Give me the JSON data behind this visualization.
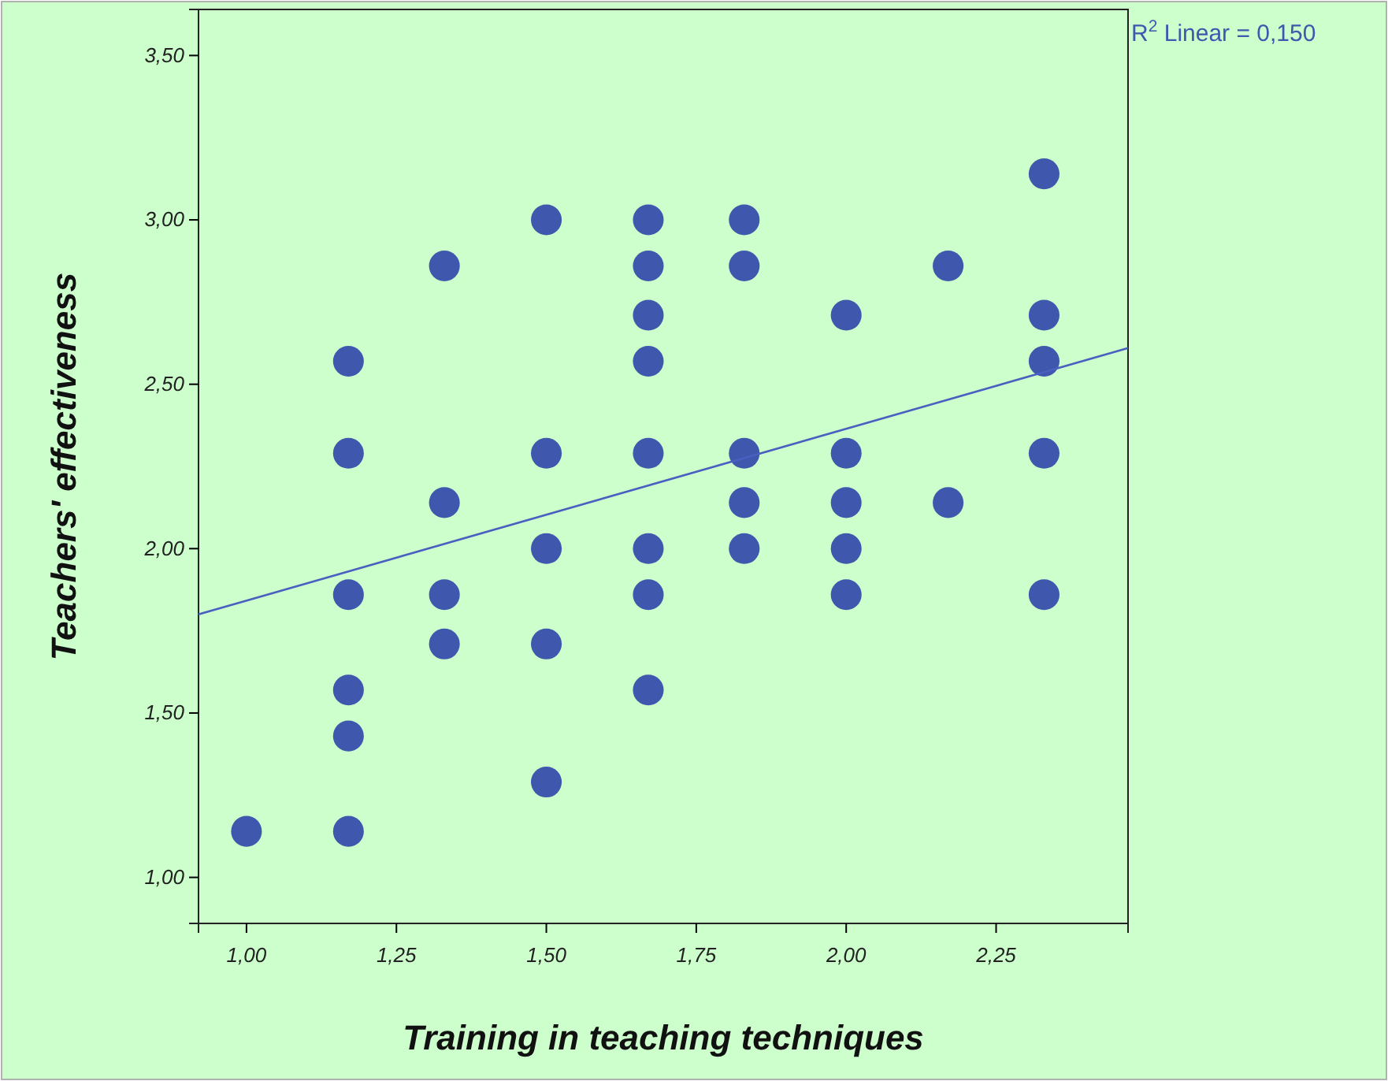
{
  "chart_data": {
    "type": "scatter",
    "xlabel": "Training in teaching techniques",
    "ylabel": "Teachers' effectiveness",
    "annotations": [
      "R$^{2}$ Linear = 0,150"
    ],
    "xlim": [
      0.92,
      2.47
    ],
    "ylim": [
      0.86,
      3.64
    ],
    "xticks": [
      {
        "value": 1,
        "label": "1,00"
      },
      {
        "value": 1.25,
        "label": "1,25"
      },
      {
        "value": 1.5,
        "label": "1,50"
      },
      {
        "value": 1.75,
        "label": "1,75"
      },
      {
        "value": 2,
        "label": "2,00"
      },
      {
        "value": 2.25,
        "label": "2,25"
      }
    ],
    "yticks": [
      {
        "value": 1,
        "label": "1,00"
      },
      {
        "value": 1.5,
        "label": "1,50"
      },
      {
        "value": 2,
        "label": "2,00"
      },
      {
        "value": 2.5,
        "label": "2,50"
      },
      {
        "value": 3,
        "label": "3,00"
      },
      {
        "value": 3.5,
        "label": "3,50"
      }
    ],
    "marker": "circle",
    "series": [
      {
        "color": "#3f57ad",
        "x": [
          1,
          1.17,
          1.17,
          1.17,
          1.17,
          1.17,
          1.17,
          1.33,
          1.33,
          1.33,
          1.33,
          1.5,
          1.5,
          1.5,
          1.5,
          1.5,
          1.67,
          1.67,
          1.67,
          1.67,
          1.67,
          1.67,
          1.67,
          1.67,
          1.83,
          1.83,
          1.83,
          1.83,
          1.83,
          2,
          2,
          2,
          2,
          2,
          2.17,
          2.17,
          2.33,
          2.33,
          2.33,
          2.33,
          2.33
        ],
        "values": [
          1.14,
          2.57,
          2.29,
          1.86,
          1.57,
          1.43,
          1.14,
          2.86,
          2.14,
          1.86,
          1.71,
          3,
          2.29,
          2,
          1.71,
          1.29,
          3,
          2.86,
          2.71,
          2.57,
          2.29,
          2,
          1.86,
          1.57,
          3,
          2.86,
          2.29,
          2.14,
          2,
          2.71,
          2.29,
          2.14,
          2,
          1.86,
          2.86,
          2.14,
          3.14,
          2.71,
          2.57,
          2.29,
          1.86
        ]
      },
      {
        "type": "line",
        "marker": "none",
        "color": "#4a5fc0",
        "x": [
          0.92,
          2.47
        ],
        "values": [
          1.8,
          2.61
        ]
      }
    ]
  }
}
